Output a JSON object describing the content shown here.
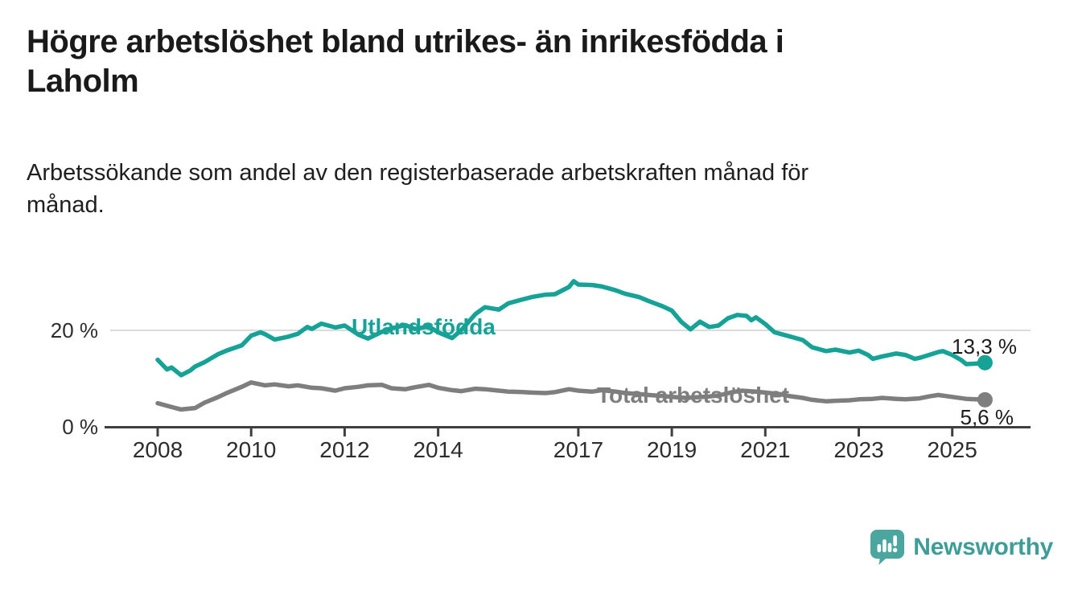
{
  "header": {
    "title_line1": "Högre arbetslöshet bland utrikes- än inrikesfödda i",
    "title_line2": "Laholm",
    "subtitle_line1": "Arbetssökande som andel av den registerbaserade arbetskraften månad för",
    "subtitle_line2": "månad."
  },
  "chart_data": {
    "type": "line",
    "title": "Högre arbetslöshet bland utrikes- än inrikesfödda i Laholm",
    "subtitle": "Arbetssökande som andel av den registerbaserade arbetskraften månad för månad.",
    "unit": "%",
    "xlim": [
      2007.4,
      2026.6
    ],
    "ylim": [
      0,
      31
    ],
    "grid": "single horizontal gridline at 20 %",
    "legend_position": "inline labels on lines",
    "x_axis": {
      "ticks": [
        {
          "year": 2008,
          "label": "2008"
        },
        {
          "year": 2010,
          "label": "2010"
        },
        {
          "year": 2012,
          "label": "2012"
        },
        {
          "year": 2014,
          "label": "2014"
        },
        {
          "year": 2017,
          "label": "2017"
        },
        {
          "year": 2019,
          "label": "2019"
        },
        {
          "year": 2021,
          "label": "2021"
        },
        {
          "year": 2023,
          "label": "2023"
        },
        {
          "year": 2025,
          "label": "2025"
        }
      ]
    },
    "y_axis": {
      "ticks": [
        {
          "value": 0,
          "label": "0 %"
        },
        {
          "value": 20,
          "label": "20 %"
        }
      ]
    },
    "series": [
      {
        "name": "Utlandsfödda",
        "color": "#16a296",
        "end_value": 13.3,
        "end_label": "13,3 %",
        "points": [
          [
            2008.0,
            13.9
          ],
          [
            2008.2,
            11.9
          ],
          [
            2008.3,
            12.3
          ],
          [
            2008.5,
            10.7
          ],
          [
            2008.7,
            11.7
          ],
          [
            2008.8,
            12.5
          ],
          [
            2009.0,
            13.4
          ],
          [
            2009.3,
            15.1
          ],
          [
            2009.5,
            15.9
          ],
          [
            2009.8,
            16.9
          ],
          [
            2010.0,
            18.9
          ],
          [
            2010.2,
            19.6
          ],
          [
            2010.3,
            19.2
          ],
          [
            2010.5,
            18.1
          ],
          [
            2010.8,
            18.7
          ],
          [
            2011.0,
            19.3
          ],
          [
            2011.2,
            20.7
          ],
          [
            2011.3,
            20.3
          ],
          [
            2011.5,
            21.4
          ],
          [
            2011.8,
            20.6
          ],
          [
            2012.0,
            21.0
          ],
          [
            2012.3,
            19.1
          ],
          [
            2012.5,
            18.3
          ],
          [
            2012.8,
            19.7
          ],
          [
            2013.0,
            20.4
          ],
          [
            2013.3,
            21.1
          ],
          [
            2013.5,
            20.3
          ],
          [
            2013.8,
            20.8
          ],
          [
            2014.0,
            19.6
          ],
          [
            2014.3,
            18.4
          ],
          [
            2014.5,
            20.1
          ],
          [
            2014.8,
            23.4
          ],
          [
            2015.0,
            24.8
          ],
          [
            2015.3,
            24.3
          ],
          [
            2015.5,
            25.6
          ],
          [
            2015.8,
            26.4
          ],
          [
            2016.0,
            26.9
          ],
          [
            2016.3,
            27.4
          ],
          [
            2016.5,
            27.5
          ],
          [
            2016.8,
            29.0
          ],
          [
            2016.9,
            30.2
          ],
          [
            2017.0,
            29.5
          ],
          [
            2017.3,
            29.4
          ],
          [
            2017.5,
            29.1
          ],
          [
            2017.8,
            28.3
          ],
          [
            2018.0,
            27.6
          ],
          [
            2018.3,
            26.9
          ],
          [
            2018.5,
            26.1
          ],
          [
            2018.8,
            25.0
          ],
          [
            2019.0,
            24.1
          ],
          [
            2019.2,
            21.8
          ],
          [
            2019.4,
            20.2
          ],
          [
            2019.6,
            21.8
          ],
          [
            2019.8,
            20.7
          ],
          [
            2020.0,
            21.0
          ],
          [
            2020.2,
            22.5
          ],
          [
            2020.4,
            23.2
          ],
          [
            2020.6,
            23.0
          ],
          [
            2020.7,
            22.1
          ],
          [
            2020.8,
            22.7
          ],
          [
            2021.0,
            21.3
          ],
          [
            2021.2,
            19.6
          ],
          [
            2021.5,
            18.8
          ],
          [
            2021.8,
            18.0
          ],
          [
            2022.0,
            16.5
          ],
          [
            2022.3,
            15.7
          ],
          [
            2022.5,
            16.0
          ],
          [
            2022.8,
            15.4
          ],
          [
            2023.0,
            15.8
          ],
          [
            2023.2,
            14.9
          ],
          [
            2023.3,
            14.1
          ],
          [
            2023.5,
            14.6
          ],
          [
            2023.8,
            15.2
          ],
          [
            2024.0,
            14.9
          ],
          [
            2024.2,
            14.1
          ],
          [
            2024.3,
            14.3
          ],
          [
            2024.5,
            14.9
          ],
          [
            2024.7,
            15.5
          ],
          [
            2024.8,
            15.7
          ],
          [
            2025.0,
            14.9
          ],
          [
            2025.2,
            13.8
          ],
          [
            2025.3,
            13.0
          ],
          [
            2025.5,
            13.1
          ],
          [
            2025.7,
            13.3
          ]
        ]
      },
      {
        "name": "Total arbetslöshet",
        "color": "#7e7e7e",
        "end_value": 5.6,
        "end_label": "5,6 %",
        "points": [
          [
            2008.0,
            4.9
          ],
          [
            2008.3,
            4.1
          ],
          [
            2008.5,
            3.6
          ],
          [
            2008.8,
            3.9
          ],
          [
            2009.0,
            5.0
          ],
          [
            2009.3,
            6.2
          ],
          [
            2009.5,
            7.1
          ],
          [
            2009.8,
            8.3
          ],
          [
            2010.0,
            9.2
          ],
          [
            2010.3,
            8.6
          ],
          [
            2010.5,
            8.8
          ],
          [
            2010.8,
            8.4
          ],
          [
            2011.0,
            8.6
          ],
          [
            2011.3,
            8.1
          ],
          [
            2011.5,
            8.0
          ],
          [
            2011.8,
            7.5
          ],
          [
            2012.0,
            8.0
          ],
          [
            2012.3,
            8.3
          ],
          [
            2012.5,
            8.6
          ],
          [
            2012.8,
            8.7
          ],
          [
            2013.0,
            8.0
          ],
          [
            2013.3,
            7.8
          ],
          [
            2013.5,
            8.2
          ],
          [
            2013.8,
            8.7
          ],
          [
            2014.0,
            8.1
          ],
          [
            2014.3,
            7.6
          ],
          [
            2014.5,
            7.4
          ],
          [
            2014.8,
            7.9
          ],
          [
            2015.0,
            7.8
          ],
          [
            2015.3,
            7.5
          ],
          [
            2015.5,
            7.3
          ],
          [
            2015.8,
            7.2
          ],
          [
            2016.0,
            7.1
          ],
          [
            2016.3,
            7.0
          ],
          [
            2016.5,
            7.2
          ],
          [
            2016.8,
            7.8
          ],
          [
            2017.0,
            7.5
          ],
          [
            2017.3,
            7.3
          ],
          [
            2017.5,
            7.6
          ],
          [
            2017.8,
            7.3
          ],
          [
            2018.0,
            7.0
          ],
          [
            2018.3,
            6.8
          ],
          [
            2018.5,
            6.6
          ],
          [
            2018.8,
            6.4
          ],
          [
            2019.0,
            6.2
          ],
          [
            2019.3,
            6.0
          ],
          [
            2019.5,
            6.1
          ],
          [
            2019.8,
            6.3
          ],
          [
            2020.0,
            6.5
          ],
          [
            2020.3,
            7.2
          ],
          [
            2020.5,
            7.5
          ],
          [
            2020.8,
            7.3
          ],
          [
            2021.0,
            7.1
          ],
          [
            2021.3,
            6.8
          ],
          [
            2021.5,
            6.4
          ],
          [
            2021.8,
            6.0
          ],
          [
            2022.0,
            5.6
          ],
          [
            2022.3,
            5.3
          ],
          [
            2022.5,
            5.4
          ],
          [
            2022.8,
            5.5
          ],
          [
            2023.0,
            5.7
          ],
          [
            2023.3,
            5.8
          ],
          [
            2023.5,
            6.0
          ],
          [
            2023.8,
            5.8
          ],
          [
            2024.0,
            5.7
          ],
          [
            2024.3,
            5.9
          ],
          [
            2024.5,
            6.3
          ],
          [
            2024.7,
            6.6
          ],
          [
            2025.0,
            6.2
          ],
          [
            2025.3,
            5.8
          ],
          [
            2025.5,
            5.7
          ],
          [
            2025.7,
            5.6
          ]
        ]
      }
    ],
    "colors": {
      "utlandsfodda_line": "#16a296",
      "total_line": "#7e7e7e",
      "gridline": "#dbdbdb",
      "axis": "#3f3f3f",
      "text": "#1a1a1a"
    }
  },
  "branding": {
    "logo_text": "Newsworthy",
    "logo_icon": "bar-chart-speech-bubble-icon",
    "logo_color": "#4ba6a0",
    "logo_text_color": "#3e9d96"
  }
}
